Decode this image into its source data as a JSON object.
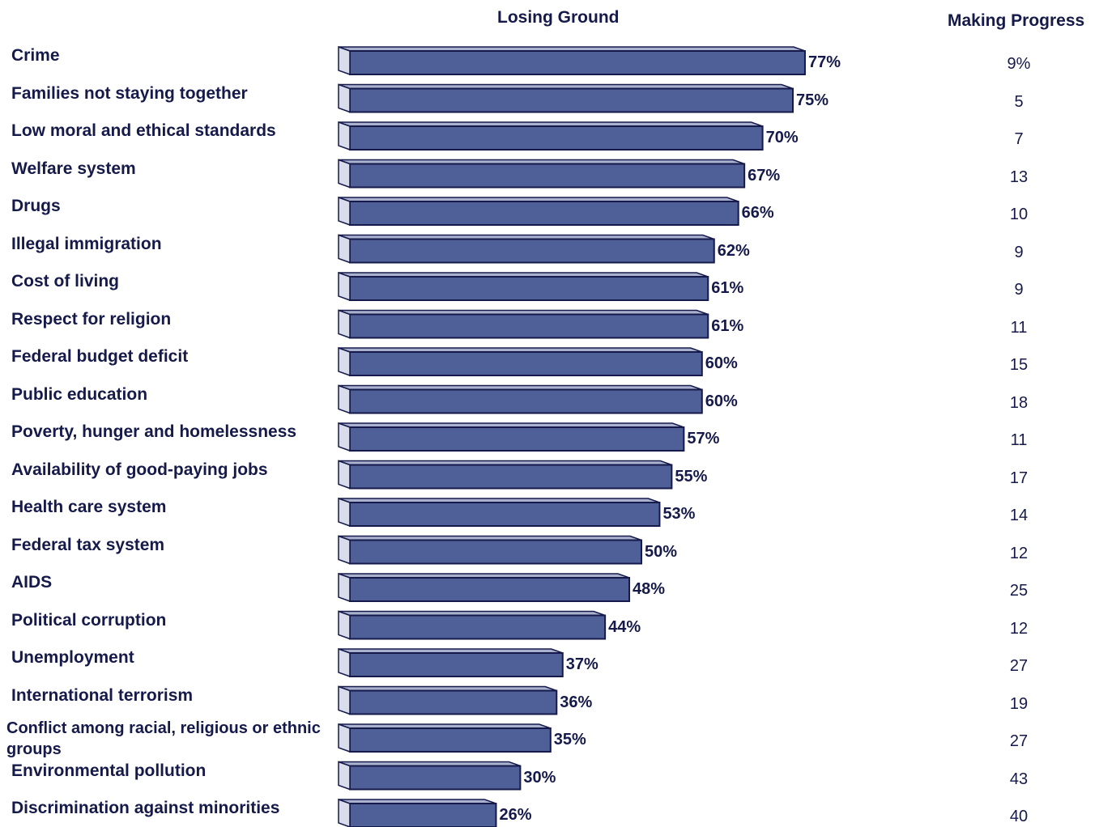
{
  "chart_data": {
    "type": "bar",
    "orientation": "horizontal",
    "style": "3d",
    "bar_color": "#4f5f98",
    "bar_top_color": "#a9b1cf",
    "bar_end_color": "#d9dcea",
    "outline_color": "#151a4a",
    "column_headers": {
      "losing_ground": "Losing Ground",
      "making_progress": "Making Progress"
    },
    "categories": [
      "Crime",
      "Families not staying together",
      "Low moral and ethical standards",
      "Welfare system",
      "Drugs",
      "Illegal immigration",
      "Cost of living",
      "Respect for religion",
      "Federal budget deficit",
      "Public education",
      "Poverty, hunger and homelessness",
      "Availability of good-paying jobs",
      "Health care system",
      "Federal tax system",
      "AIDS",
      "Political corruption",
      "Unemployment",
      "International terrorism",
      "Conflict among racial, religious or ethnic groups",
      "Environmental pollution",
      "Discrimination against minorities"
    ],
    "series": [
      {
        "name": "Losing Ground",
        "values": [
          77,
          75,
          70,
          67,
          66,
          62,
          61,
          61,
          60,
          60,
          57,
          55,
          53,
          50,
          48,
          44,
          37,
          36,
          35,
          30,
          26
        ],
        "labels": [
          "77%",
          "75%",
          "70%",
          "67%",
          "66%",
          "62%",
          "61%",
          "61%",
          "60%",
          "60%",
          "57%",
          "55%",
          "53%",
          "50%",
          "48%",
          "44%",
          "37%",
          "36%",
          "35%",
          "30%",
          "26%"
        ]
      },
      {
        "name": "Making Progress",
        "values": [
          9,
          5,
          7,
          13,
          10,
          9,
          9,
          11,
          15,
          18,
          11,
          17,
          14,
          12,
          25,
          12,
          27,
          19,
          27,
          43,
          40
        ],
        "labels": [
          "9%",
          "5",
          "7",
          "13",
          "10",
          "9",
          "9",
          "11",
          "15",
          "18",
          "11",
          "17",
          "14",
          "12",
          "25",
          "12",
          "27",
          "19",
          "27",
          "43",
          "40"
        ]
      }
    ],
    "xlim": [
      0,
      100
    ],
    "grid": false,
    "legend": "none"
  }
}
